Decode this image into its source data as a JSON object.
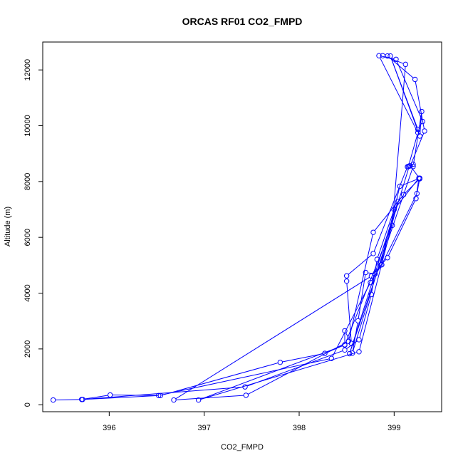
{
  "chart_data": {
    "type": "line",
    "title": "ORCAS RF01 CO2_FMPD",
    "xlabel": "CO2_FMPD",
    "ylabel": "Altitude (m)",
    "xlim": [
      395.3,
      399.5
    ],
    "ylim": [
      -250,
      13000
    ],
    "x_ticks": [
      396,
      397,
      398,
      399
    ],
    "y_ticks": [
      0,
      2000,
      4000,
      6000,
      8000,
      10000,
      12000
    ],
    "grid": false,
    "legend": "none",
    "line_color": "#0000ff",
    "marker": "open-circle",
    "series": [
      {
        "points": [
          [
            395.41,
            170
          ],
          [
            395.71,
            190
          ],
          [
            396.01,
            350
          ],
          [
            396.54,
            330
          ],
          [
            397.8,
            1520
          ],
          [
            398.27,
            1840
          ],
          [
            398.48,
            2150
          ],
          [
            398.48,
            2650
          ],
          [
            398.55,
            2200
          ],
          [
            398.5,
            4430
          ],
          [
            398.5,
            4620
          ],
          [
            398.78,
            5420
          ],
          [
            399.14,
            8530
          ],
          [
            399.2,
            8620
          ],
          [
            399.16,
            8560
          ],
          [
            398.56,
            1850
          ],
          [
            398.62,
            3010
          ],
          [
            398.7,
            4740
          ],
          [
            398.8,
            4690
          ],
          [
            398.86,
            5010
          ],
          [
            399.06,
            7830
          ],
          [
            399.27,
            8120
          ],
          [
            399.24,
            7570
          ],
          [
            398.87,
            5020
          ],
          [
            398.75,
            4380
          ],
          [
            398.34,
            1660
          ],
          [
            396.52,
            330
          ],
          [
            395.72,
            190
          ],
          [
            397.43,
            640
          ],
          [
            398.48,
            1960
          ],
          [
            398.63,
            2330
          ],
          [
            398.76,
            3950
          ],
          [
            398.82,
            5210
          ],
          [
            399.0,
            7000
          ],
          [
            399.26,
            8120
          ],
          [
            399.23,
            7390
          ],
          [
            398.93,
            5270
          ],
          [
            398.76,
            4610
          ],
          [
            396.68,
            170
          ],
          [
            397.44,
            340
          ],
          [
            398.52,
            2270
          ],
          [
            398.78,
            6180
          ],
          [
            399.1,
            7530
          ],
          [
            399.27,
            8100
          ],
          [
            399.17,
            8560
          ],
          [
            399.32,
            9810
          ],
          [
            399.22,
            11660
          ],
          [
            398.93,
            12500
          ],
          [
            398.88,
            12510
          ],
          [
            399.12,
            12200
          ],
          [
            398.98,
            6430
          ],
          [
            398.48,
            2140
          ],
          [
            396.94,
            170
          ],
          [
            398.63,
            1900
          ],
          [
            399.04,
            7290
          ],
          [
            398.53,
            1830
          ],
          [
            399.2,
            8540
          ],
          [
            399.29,
            10510
          ],
          [
            399.27,
            9630
          ],
          [
            398.96,
            12500
          ],
          [
            399.25,
            9870
          ],
          [
            399.3,
            10150
          ],
          [
            399.02,
            12380
          ],
          [
            398.84,
            12510
          ],
          [
            399.25,
            9750
          ],
          [
            399.15,
            8540
          ]
        ]
      }
    ]
  }
}
